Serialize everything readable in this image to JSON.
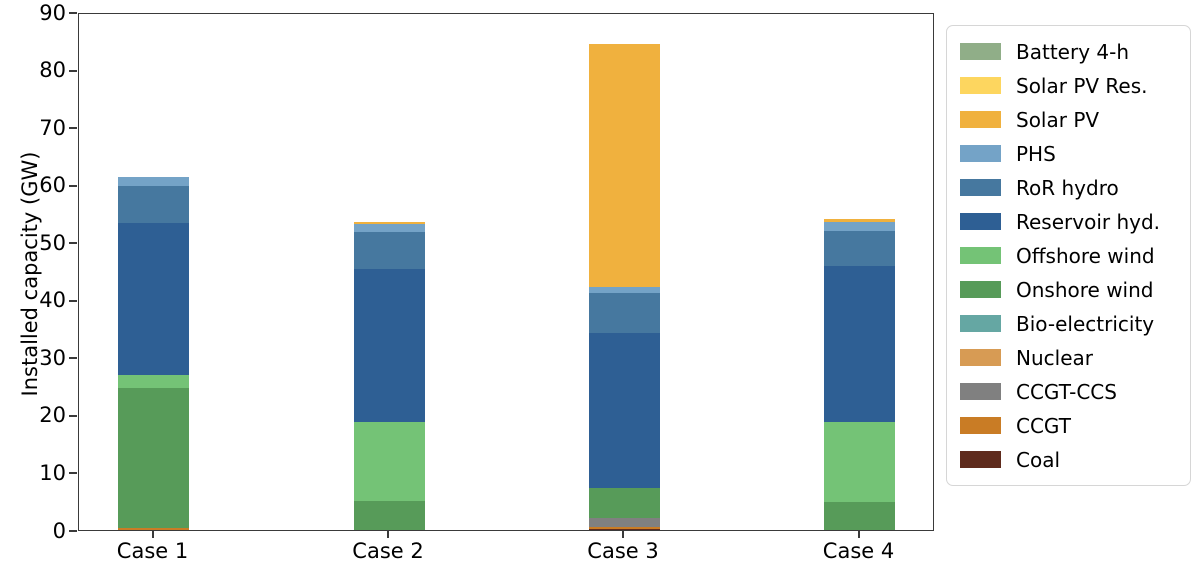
{
  "chart_data": {
    "type": "bar",
    "stacked": true,
    "title": "",
    "xlabel": "",
    "ylabel": "Installed capacity (GW)",
    "ylim": [
      0,
      90
    ],
    "yticks": [
      0,
      10,
      20,
      30,
      40,
      50,
      60,
      70,
      80,
      90
    ],
    "grid": false,
    "legend_position": "right-outside",
    "categories": [
      "Case 1",
      "Case 2",
      "Case 3",
      "Case 4"
    ],
    "series_bottom_to_top": [
      {
        "name": "Coal",
        "color": "#5f2b1d",
        "values": [
          0,
          0,
          0.2,
          0
        ]
      },
      {
        "name": "CCGT",
        "color": "#c97c25",
        "values": [
          0.4,
          0,
          0.3,
          0
        ]
      },
      {
        "name": "CCGT-CCS",
        "color": "#808080",
        "values": [
          0,
          0,
          1.6,
          0
        ]
      },
      {
        "name": "Nuclear",
        "color": "#d79b54",
        "values": [
          0,
          0,
          0,
          0
        ]
      },
      {
        "name": "Bio-electricity",
        "color": "#65a7a3",
        "values": [
          0,
          0,
          0,
          0
        ]
      },
      {
        "name": "Onshore wind",
        "color": "#579b59",
        "values": [
          24.2,
          5.0,
          5.2,
          4.9
        ]
      },
      {
        "name": "Offshore wind",
        "color": "#74c376",
        "values": [
          2.3,
          13.8,
          0,
          13.9
        ]
      },
      {
        "name": "Reservoir hyd.",
        "color": "#2e5f94",
        "values": [
          26.4,
          26.5,
          27.0,
          27.0
        ]
      },
      {
        "name": "RoR hydro",
        "color": "#46789f",
        "values": [
          6.4,
          6.5,
          6.9,
          6.1
        ]
      },
      {
        "name": "PHS",
        "color": "#74a3c7",
        "values": [
          1.6,
          1.3,
          1.1,
          1.7
        ]
      },
      {
        "name": "Solar PV",
        "color": "#f0b13e",
        "values": [
          0,
          0.4,
          42.1,
          0.4
        ]
      },
      {
        "name": "Solar PV Res.",
        "color": "#fdd65f",
        "values": [
          0,
          0,
          0,
          0
        ]
      },
      {
        "name": "Battery 4-h",
        "color": "#90ae88",
        "values": [
          0,
          0,
          0,
          0
        ]
      }
    ],
    "totals": [
      61.3,
      53.5,
      84.4,
      54.0
    ],
    "legend_entries_top_to_bottom": [
      "Battery 4-h",
      "Solar PV Res.",
      "Solar PV",
      "PHS",
      "RoR hydro",
      "Reservoir hyd.",
      "Offshore wind",
      "Onshore wind",
      "Bio-electricity",
      "Nuclear",
      "CCGT-CCS",
      "CCGT",
      "Coal"
    ]
  }
}
